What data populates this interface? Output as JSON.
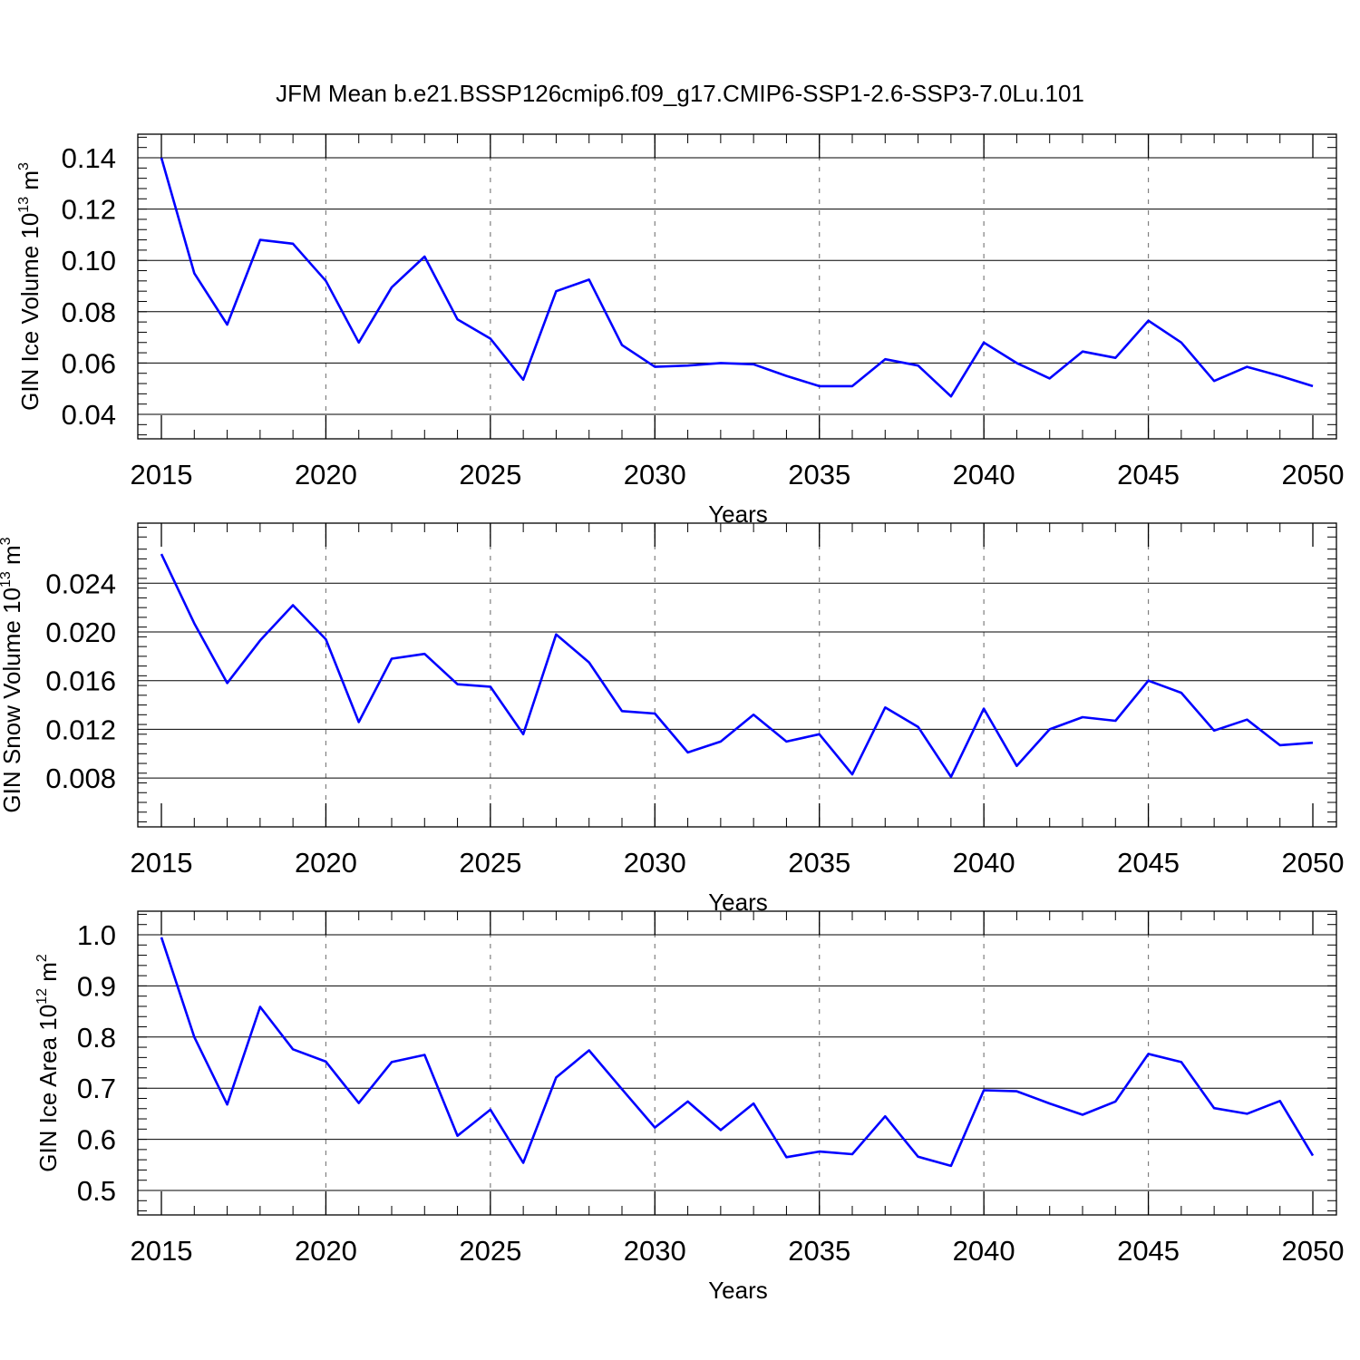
{
  "title": "JFM Mean b.e21.BSSP126cmip6.f09_g17.CMIP6-SSP1-2.6-SSP3-7.0Lu.101",
  "colors": {
    "line": "#0000ff",
    "axis": "#000000",
    "grid": "#808080"
  },
  "chart_data": [
    {
      "type": "line",
      "ylabel_prefix": "GIN Ice Volume 10",
      "ylabel_exp": "13",
      "ylabel_unit": " m",
      "ylabel_unit_exp": "3",
      "xlabel": "Years",
      "xlim": [
        2015,
        2050
      ],
      "ylim": [
        0.04,
        0.14
      ],
      "xticks": [
        "2015",
        "2020",
        "2025",
        "2030",
        "2035",
        "2040",
        "2045",
        "2050"
      ],
      "yticks": [
        "0.04",
        "0.06",
        "0.08",
        "0.10",
        "0.12",
        "0.14"
      ],
      "grid": "x dashed",
      "x": [
        2015,
        2016,
        2017,
        2018,
        2019,
        2020,
        2021,
        2022,
        2023,
        2024,
        2025,
        2026,
        2027,
        2028,
        2029,
        2030,
        2031,
        2032,
        2033,
        2034,
        2035,
        2036,
        2037,
        2038,
        2039,
        2040,
        2041,
        2042,
        2043,
        2044,
        2045,
        2046,
        2047,
        2048,
        2049,
        2050
      ],
      "values": [
        0.14,
        0.095,
        0.075,
        0.108,
        0.1065,
        0.092,
        0.068,
        0.0895,
        0.1015,
        0.077,
        0.0695,
        0.0535,
        0.088,
        0.0925,
        0.067,
        0.0585,
        0.059,
        0.06,
        0.0595,
        0.055,
        0.051,
        0.051,
        0.0615,
        0.059,
        0.047,
        0.068,
        0.06,
        0.054,
        0.0645,
        0.062,
        0.0765,
        0.068,
        0.053,
        0.0585,
        0.055,
        0.051
      ]
    },
    {
      "type": "line",
      "ylabel_prefix": "GIN Snow Volume 10",
      "ylabel_exp": "13",
      "ylabel_unit": " m",
      "ylabel_unit_exp": "3",
      "xlabel": "Years",
      "xlim": [
        2015,
        2050
      ],
      "ylim": [
        0.006,
        0.027
      ],
      "xticks": [
        "2015",
        "2020",
        "2025",
        "2030",
        "2035",
        "2040",
        "2045",
        "2050"
      ],
      "yticks": [
        "0.008",
        "0.012",
        "0.016",
        "0.020",
        "0.024"
      ],
      "grid": "x dashed",
      "x": [
        2015,
        2016,
        2017,
        2018,
        2019,
        2020,
        2021,
        2022,
        2023,
        2024,
        2025,
        2026,
        2027,
        2028,
        2029,
        2030,
        2031,
        2032,
        2033,
        2034,
        2035,
        2036,
        2037,
        2038,
        2039,
        2040,
        2041,
        2042,
        2043,
        2044,
        2045,
        2046,
        2047,
        2048,
        2049,
        2050
      ],
      "values": [
        0.0264,
        0.0207,
        0.0158,
        0.0193,
        0.0222,
        0.0194,
        0.0126,
        0.0178,
        0.0182,
        0.0157,
        0.0155,
        0.0116,
        0.0198,
        0.0175,
        0.0135,
        0.0133,
        0.0101,
        0.011,
        0.0132,
        0.011,
        0.0116,
        0.0083,
        0.0138,
        0.0122,
        0.0081,
        0.0137,
        0.009,
        0.012,
        0.013,
        0.0127,
        0.016,
        0.015,
        0.0119,
        0.0128,
        0.0107,
        0.0109
      ]
    },
    {
      "type": "line",
      "ylabel_prefix": "GIN Ice Area 10",
      "ylabel_exp": "12",
      "ylabel_unit": " m",
      "ylabel_unit_exp": "2",
      "xlabel": "Years",
      "xlim": [
        2015,
        2050
      ],
      "ylim": [
        0.5,
        1.0
      ],
      "xticks": [
        "2015",
        "2020",
        "2025",
        "2030",
        "2035",
        "2040",
        "2045",
        "2050"
      ],
      "yticks": [
        "0.5",
        "0.6",
        "0.7",
        "0.8",
        "0.9",
        "1.0"
      ],
      "grid": "x dashed",
      "x": [
        2015,
        2016,
        2017,
        2018,
        2019,
        2020,
        2021,
        2022,
        2023,
        2024,
        2025,
        2026,
        2027,
        2028,
        2029,
        2030,
        2031,
        2032,
        2033,
        2034,
        2035,
        2036,
        2037,
        2038,
        2039,
        2040,
        2041,
        2042,
        2043,
        2044,
        2045,
        2046,
        2047,
        2048,
        2049,
        2050
      ],
      "values": [
        0.995,
        0.8,
        0.668,
        0.859,
        0.776,
        0.752,
        0.671,
        0.751,
        0.765,
        0.607,
        0.658,
        0.554,
        0.721,
        0.774,
        0.698,
        0.623,
        0.674,
        0.618,
        0.67,
        0.565,
        0.576,
        0.571,
        0.645,
        0.566,
        0.548,
        0.696,
        0.694,
        0.67,
        0.648,
        0.674,
        0.767,
        0.751,
        0.661,
        0.65,
        0.675,
        0.568
      ]
    }
  ]
}
